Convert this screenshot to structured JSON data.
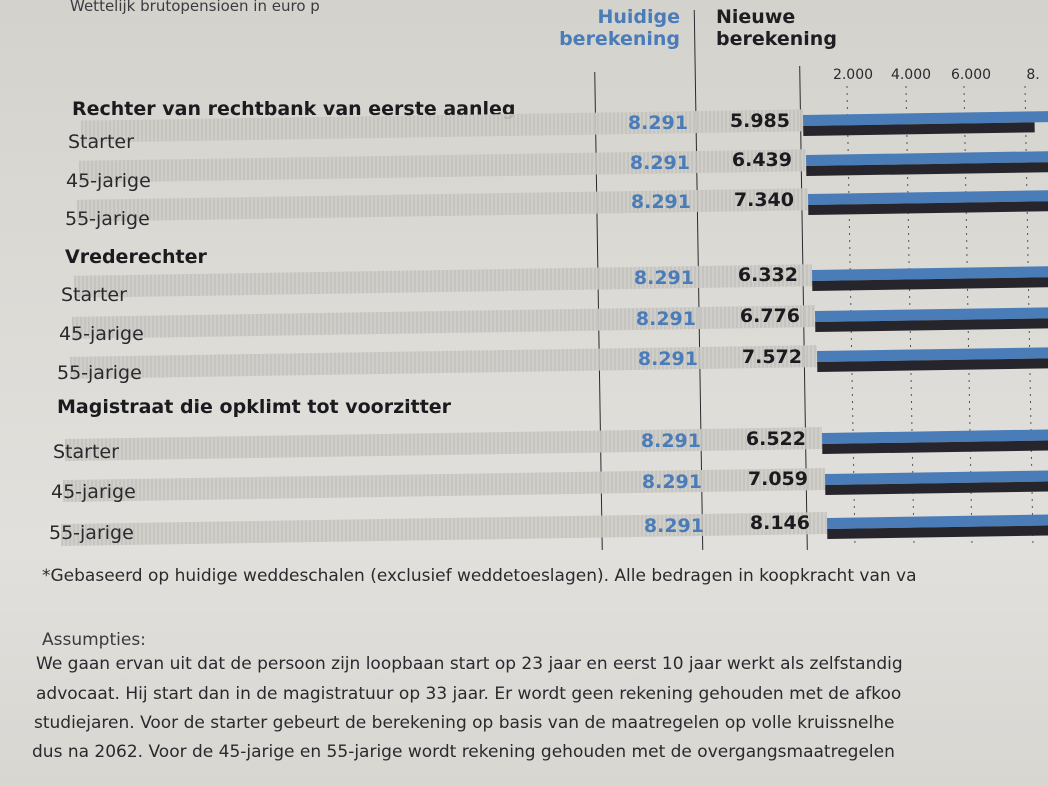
{
  "subtitle": "Wettelijk brutopensioen in euro p",
  "columns": {
    "current": [
      "Huidige",
      "berekening"
    ],
    "new": [
      "Nieuwe",
      "berekening"
    ]
  },
  "colors": {
    "current": "#4a7cb8",
    "new": "#25252b"
  },
  "chart_data": {
    "type": "bar",
    "orientation": "horizontal",
    "series": [
      {
        "name": "Huidige berekening",
        "color": "#4a7cb8",
        "values": [
          8291,
          8291,
          8291,
          8291,
          8291,
          8291,
          8291,
          8291,
          8291
        ]
      },
      {
        "name": "Nieuwe berekening",
        "color": "#25252b",
        "values": [
          5985,
          6439,
          7340,
          6332,
          6776,
          7572,
          6522,
          7059,
          8146
        ]
      }
    ],
    "xticks": [
      "2.000",
      "4.000",
      "6.000",
      "8."
    ],
    "xtick_values": [
      2000,
      4000,
      6000,
      8000
    ],
    "grid": true,
    "groups": [
      {
        "title": "Rechter van rechtbank van eerste aanleg",
        "rows": [
          {
            "label": "Starter",
            "current": "8.291",
            "new": "5.985"
          },
          {
            "label": "45-jarige",
            "current": "8.291",
            "new": "6.439"
          },
          {
            "label": "55-jarige",
            "current": "8.291",
            "new": "7.340"
          }
        ]
      },
      {
        "title": "Vrederechter",
        "rows": [
          {
            "label": "Starter",
            "current": "8.291",
            "new": "6.332"
          },
          {
            "label": "45-jarige",
            "current": "8.291",
            "new": "6.776"
          },
          {
            "label": "55-jarige",
            "current": "8.291",
            "new": "7.572"
          }
        ]
      },
      {
        "title": "Magistraat die opklimt tot voorzitter",
        "rows": [
          {
            "label": "Starter",
            "current": "8.291",
            "new": "6.522"
          },
          {
            "label": "45-jarige",
            "current": "8.291",
            "new": "7.059"
          },
          {
            "label": "55-jarige",
            "current": "8.291",
            "new": "8.146"
          }
        ]
      }
    ]
  },
  "footnote": "*Gebaseerd op huidige weddeschalen (exclusief weddetoeslagen). Alle bedragen in koopkracht van va",
  "assumptions": {
    "heading": "Assumpties:",
    "lines": [
      "We gaan ervan uit dat de persoon zijn loopbaan start op 23 jaar en eerst 10 jaar werkt als zelfstandig",
      "advocaat. Hij start dan in de magistratuur op 33 jaar. Er wordt geen rekening gehouden met de afkoo",
      "studiejaren. Voor de starter gebeurt de berekening op basis van de maatregelen op volle kruissnelhe",
      "dus na 2062. Voor de 45-jarige en 55-jarige wordt rekening gehouden met de overgangsmaatregelen"
    ]
  }
}
